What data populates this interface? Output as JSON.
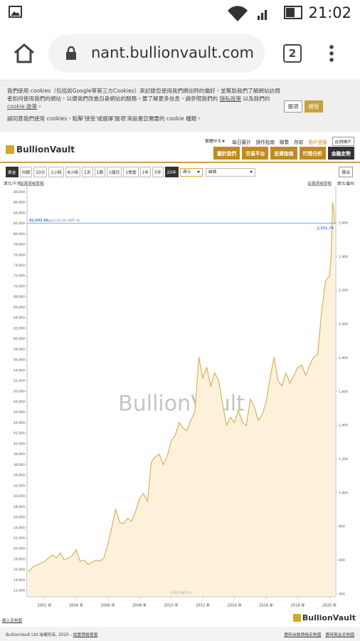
{
  "status_bar": {
    "time": "21:02"
  },
  "browser": {
    "url": "nant.bullionvault.com",
    "tab_count": 2
  },
  "cookie_banner": {
    "line1": "我們使用 cookies（包括如Google等第三方Cookies）來記錄您使用我們網站時的偏好，並幫助我們了解網站訪問者如何使用我們的網站，以便我們改進自身網站的服務。要了解更多信息，請參閱我們的",
    "privacy_link": "隱私政策",
    "line1_mid": "以及我們的",
    "cookie_link": "cookie 政策",
    "line1_end": "。",
    "line2": "請同意我們使用 cookies，點擊'接受'或選擇'選項'來設置您需要的 cookie 種類。",
    "options_button": "選項",
    "accept_button": "接受"
  },
  "site": {
    "logo": "BullionVault",
    "top_links": [
      "繁體中文",
      "每日審計",
      "操作指南",
      "聯繫",
      "存款",
      "用戶登錄"
    ],
    "register_button": "註冊帳戶",
    "nav": [
      "關於我們",
      "交易平台",
      "投資指南",
      "行情分析",
      "金融走勢"
    ]
  },
  "chart_toolbar": {
    "metals": [
      "黃金",
      "白銀"
    ],
    "ranges": [
      "10分",
      "1小時",
      "6小時",
      "1天",
      "1周",
      "1個月",
      "1季度",
      "1年",
      "5年",
      "20年"
    ],
    "currency": "澳元",
    "style": "曲線",
    "export": "導出"
  },
  "chart_data": {
    "type": "line",
    "y_label": "澳元/千克",
    "y2_label": "澳元/盎司",
    "alert_left": "設置價格警報",
    "alert_right": "設置價格警報",
    "watermark": "BullionVault",
    "zoom_hint": "點擊-拖動放大",
    "color": "#d2ae4c",
    "fill_color": "#fdf1dc",
    "current_color": "#4a86e8",
    "x": [
      2001.0,
      2001.25,
      2001.5,
      2001.75,
      2002.0,
      2002.25,
      2002.5,
      2002.75,
      2003.0,
      2003.25,
      2003.5,
      2003.75,
      2004.0,
      2004.25,
      2004.5,
      2004.75,
      2005.0,
      2005.25,
      2005.5,
      2005.75,
      2006.0,
      2006.25,
      2006.5,
      2006.75,
      2007.0,
      2007.25,
      2007.5,
      2007.75,
      2008.0,
      2008.25,
      2008.5,
      2008.75,
      2009.0,
      2009.25,
      2009.5,
      2009.75,
      2010.0,
      2010.25,
      2010.5,
      2010.75,
      2011.0,
      2011.25,
      2011.5,
      2011.75,
      2012.0,
      2012.25,
      2012.5,
      2012.75,
      2013.0,
      2013.25,
      2013.5,
      2013.75,
      2014.0,
      2014.25,
      2014.5,
      2014.75,
      2015.0,
      2015.25,
      2015.5,
      2015.75,
      2016.0,
      2016.25,
      2016.5,
      2016.75,
      2017.0,
      2017.25,
      2017.5,
      2017.75,
      2018.0,
      2018.25,
      2018.5,
      2018.75,
      2019.0,
      2019.25,
      2019.5,
      2019.75,
      2020.0,
      2020.1,
      2020.2,
      2020.28,
      2020.33
    ],
    "values": [
      15500,
      16500,
      16800,
      17200,
      17500,
      18200,
      18800,
      18200,
      19200,
      17800,
      18200,
      18600,
      19800,
      17600,
      17800,
      17000,
      17400,
      17800,
      17600,
      18200,
      20800,
      24000,
      27500,
      25000,
      24800,
      25800,
      25200,
      27000,
      29500,
      30500,
      29000,
      36500,
      37500,
      38000,
      36000,
      37500,
      40500,
      41500,
      44000,
      43000,
      42500,
      44500,
      46000,
      56500,
      52500,
      54500,
      51000,
      53500,
      52000,
      47500,
      43500,
      45000,
      44000,
      46500,
      44000,
      43500,
      48500,
      47000,
      44500,
      45500,
      48000,
      52500,
      56500,
      52000,
      51000,
      53500,
      51500,
      53000,
      54500,
      55000,
      53000,
      55000,
      56500,
      57000,
      65000,
      71000,
      72000,
      75500,
      86000,
      84500,
      82042.06
    ],
    "xlim": [
      2000.9,
      2020.4
    ],
    "xticks": [
      {
        "value": 2002,
        "label": "2002 年"
      },
      {
        "value": 2004,
        "label": "2004 年"
      },
      {
        "value": 2006,
        "label": "2006 年"
      },
      {
        "value": 2008,
        "label": "2008 年"
      },
      {
        "value": 2010,
        "label": "2010 年"
      },
      {
        "value": 2012,
        "label": "2012 年"
      },
      {
        "value": 2014,
        "label": "2014 年"
      },
      {
        "value": 2016,
        "label": "2016 年"
      },
      {
        "value": 2018,
        "label": "2018 年"
      },
      {
        "value": 2020,
        "label": "2020 年"
      }
    ],
    "ylim": [
      10800,
      89000
    ],
    "yticks": [
      {
        "value": 12000,
        "label": "12,000"
      },
      {
        "value": 14000,
        "label": "14,000"
      },
      {
        "value": 16000,
        "label": "16,000"
      },
      {
        "value": 18000,
        "label": "18,000"
      },
      {
        "value": 20000,
        "label": "20,000"
      },
      {
        "value": 22000,
        "label": "22,000"
      },
      {
        "value": 24000,
        "label": "24,000"
      },
      {
        "value": 26000,
        "label": "26,000"
      },
      {
        "value": 28000,
        "label": "28,000"
      },
      {
        "value": 30000,
        "label": "30,000"
      },
      {
        "value": 32000,
        "label": "32,000"
      },
      {
        "value": 34000,
        "label": "34,000"
      },
      {
        "value": 36000,
        "label": "36,000"
      },
      {
        "value": 38000,
        "label": "38,000"
      },
      {
        "value": 40000,
        "label": "40,000"
      },
      {
        "value": 42000,
        "label": "42,000"
      },
      {
        "value": 44000,
        "label": "44,000"
      },
      {
        "value": 46000,
        "label": "46,000"
      },
      {
        "value": 48000,
        "label": "48,000"
      },
      {
        "value": 50000,
        "label": "50,000"
      },
      {
        "value": 52000,
        "label": "52,000"
      },
      {
        "value": 54000,
        "label": "54,000"
      },
      {
        "value": 56000,
        "label": "56,000"
      },
      {
        "value": 58000,
        "label": "58,000"
      },
      {
        "value": 60000,
        "label": "60,000"
      },
      {
        "value": 62000,
        "label": "62,000"
      },
      {
        "value": 64000,
        "label": "64,000"
      },
      {
        "value": 66000,
        "label": "66,000"
      },
      {
        "value": 68000,
        "label": "68,000"
      },
      {
        "value": 70000,
        "label": "70,000"
      },
      {
        "value": 72000,
        "label": "72,000"
      },
      {
        "value": 74000,
        "label": "74,000"
      },
      {
        "value": 76000,
        "label": "76,000"
      },
      {
        "value": 78000,
        "label": "78,000"
      },
      {
        "value": 80000,
        "label": "80,000"
      },
      {
        "value": 82000,
        "label": "82,000"
      },
      {
        "value": 84000,
        "label": "84,000"
      },
      {
        "value": 86000,
        "label": "86,000"
      },
      {
        "value": 88000,
        "label": "88,000"
      }
    ],
    "y2lim": [
      383,
      2815
    ],
    "y2ticks": [
      400,
      600,
      800,
      {
        "value": 1000,
        "label": "1,000"
      },
      {
        "value": 1200,
        "label": "1,200"
      },
      {
        "value": 1400,
        "label": "1,400"
      },
      {
        "value": 1600,
        "label": "1,600"
      },
      {
        "value": 1800,
        "label": "1,800"
      },
      {
        "value": 2000,
        "label": "2,000"
      },
      {
        "value": 2200,
        "label": "2,200"
      },
      {
        "value": 2400,
        "label": "2,400"
      },
      {
        "value": 2600,
        "label": "2,600"
      }
    ],
    "current_price": {
      "value": 82042.06,
      "label": "82,042.06",
      "time": "@21:01:56 GMT+8",
      "y2_value": 2551.79,
      "y2_label": "2,551.79"
    }
  },
  "footer": {
    "embed": "嵌入走勢圖",
    "logo": "BullionVault",
    "copyright": "BullionVault Ltd 版權所有, 2020 - ",
    "copyright_link": "設置價格警報",
    "links": [
      "實時自動價格走勢圖",
      "實時黃金走勢圖"
    ]
  }
}
